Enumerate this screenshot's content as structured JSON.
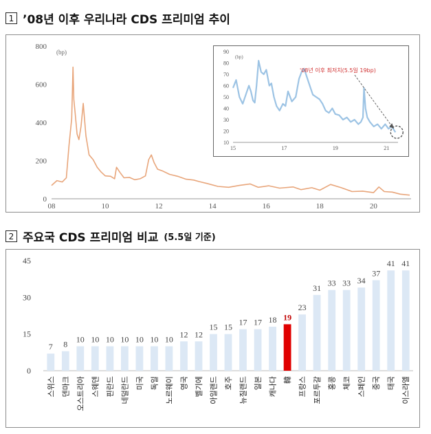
{
  "section1": {
    "number": "1",
    "title": "’08년 이후 우리나라 CDS 프리미엄 추이"
  },
  "section2": {
    "number": "2",
    "title": "주요국 CDS 프리미엄 비교",
    "subtitle": "(5.5일 기준)"
  },
  "colors": {
    "main_line": "#e8a57a",
    "inset_line": "#9cc3e4",
    "bar": "#dce8f5",
    "korea_bar": "#e00000",
    "korea_label": "#c00000",
    "annotation": "#d03030"
  },
  "chart_data": [
    {
      "type": "line",
      "ylabel": "(bp)",
      "ylim": [
        0,
        800
      ],
      "yticks": [
        0,
        200,
        400,
        600,
        800
      ],
      "xlim": [
        2008,
        2021.4
      ],
      "xticks": [
        "08",
        "10",
        "12",
        "14",
        "16",
        "18",
        "20"
      ],
      "x": [
        2008.0,
        2008.2,
        2008.4,
        2008.55,
        2008.65,
        2008.75,
        2008.8,
        2008.83,
        2008.88,
        2008.95,
        2009.02,
        2009.1,
        2009.18,
        2009.28,
        2009.4,
        2009.55,
        2009.7,
        2009.85,
        2010.0,
        2010.2,
        2010.35,
        2010.42,
        2010.55,
        2010.7,
        2010.9,
        2011.1,
        2011.3,
        2011.5,
        2011.62,
        2011.72,
        2011.82,
        2011.95,
        2012.15,
        2012.4,
        2012.7,
        2013.0,
        2013.3,
        2013.5,
        2013.8,
        2014.2,
        2014.6,
        2015.0,
        2015.4,
        2015.7,
        2016.1,
        2016.5,
        2017.0,
        2017.3,
        2017.7,
        2018.0,
        2018.4,
        2018.8,
        2019.2,
        2019.6,
        2020.0,
        2020.2,
        2020.4,
        2020.7,
        2021.0,
        2021.35
      ],
      "y": [
        70,
        95,
        88,
        110,
        280,
        420,
        690,
        520,
        450,
        340,
        310,
        380,
        500,
        330,
        230,
        205,
        165,
        140,
        120,
        118,
        105,
        165,
        138,
        110,
        112,
        100,
        105,
        120,
        205,
        230,
        190,
        155,
        145,
        128,
        118,
        103,
        98,
        90,
        80,
        65,
        60,
        70,
        78,
        60,
        68,
        56,
        62,
        48,
        58,
        45,
        75,
        58,
        38,
        40,
        32,
        62,
        38,
        35,
        24,
        19
      ]
    },
    {
      "type": "line",
      "ylabel": "(bp)",
      "ylim": [
        10,
        90
      ],
      "yticks": [
        10,
        20,
        30,
        40,
        50,
        60,
        70,
        80,
        90
      ],
      "xlim": [
        2015,
        2021.45
      ],
      "xticks": [
        "15",
        "17",
        "19",
        "21"
      ],
      "annotation": "'08년 이후 최저치(5.5일 19bp)",
      "x": [
        2015.0,
        2015.12,
        2015.25,
        2015.38,
        2015.5,
        2015.62,
        2015.7,
        2015.78,
        2015.85,
        2015.92,
        2016.0,
        2016.1,
        2016.2,
        2016.3,
        2016.42,
        2016.5,
        2016.6,
        2016.7,
        2016.82,
        2016.95,
        2017.05,
        2017.15,
        2017.3,
        2017.45,
        2017.58,
        2017.68,
        2017.78,
        2017.88,
        2018.0,
        2018.12,
        2018.25,
        2018.38,
        2018.5,
        2018.62,
        2018.75,
        2018.88,
        2019.0,
        2019.15,
        2019.3,
        2019.45,
        2019.6,
        2019.75,
        2019.9,
        2020.0,
        2020.08,
        2020.12,
        2020.18,
        2020.25,
        2020.35,
        2020.5,
        2020.65,
        2020.8,
        2020.95,
        2021.08,
        2021.2,
        2021.35
      ],
      "y": [
        58,
        65,
        50,
        44,
        52,
        60,
        55,
        47,
        45,
        60,
        82,
        72,
        70,
        74,
        60,
        62,
        50,
        42,
        38,
        44,
        42,
        55,
        46,
        50,
        66,
        72,
        75,
        68,
        60,
        52,
        50,
        48,
        44,
        38,
        36,
        40,
        35,
        34,
        30,
        32,
        28,
        30,
        26,
        28,
        32,
        58,
        40,
        32,
        28,
        24,
        26,
        22,
        26,
        22,
        24,
        19
      ]
    },
    {
      "type": "bar",
      "ylim": [
        0,
        45
      ],
      "yticks": [
        0,
        15,
        30,
        45
      ],
      "categories": [
        "스위스",
        "덴마크",
        "오스트리아",
        "스웨덴",
        "핀란드",
        "네덜란드",
        "미국",
        "독일",
        "노르웨이",
        "영국",
        "벨기에",
        "아일랜드",
        "호주",
        "뉴질랜드",
        "일본",
        "캐나다",
        "韓",
        "프랑스",
        "포르투갈",
        "홍콩",
        "체코",
        "스페인",
        "중국",
        "태국",
        "이스라엘"
      ],
      "values": [
        7,
        8,
        10,
        10,
        10,
        10,
        10,
        10,
        10,
        12,
        12,
        15,
        15,
        17,
        17,
        18,
        19,
        23,
        31,
        33,
        33,
        34,
        37,
        41,
        41
      ],
      "highlight": "韓"
    }
  ]
}
